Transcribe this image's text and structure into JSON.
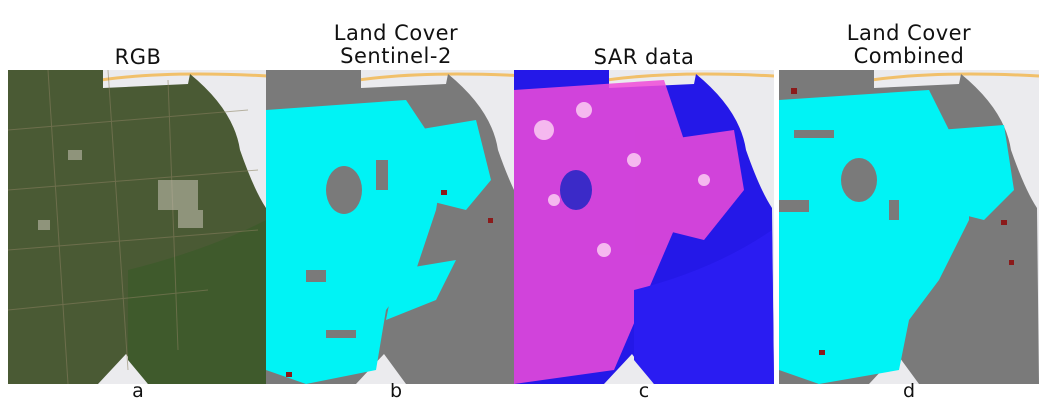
{
  "panels": [
    {
      "title": "RGB",
      "letter": "a",
      "style": "rgb"
    },
    {
      "title": "Land Cover\nSentinel-2",
      "letter": "b",
      "style": "lc"
    },
    {
      "title": "SAR data",
      "letter": "c",
      "style": "sar"
    },
    {
      "title": "Land Cover\nCombined",
      "letter": "d",
      "style": "lc2"
    }
  ],
  "colors": {
    "background_map": "#ebebee",
    "road": "#f1c06a",
    "rgb_base": "#4a5a34",
    "rgb_field": "#3f5a2c",
    "lc_urban": "#00f3f5",
    "lc_gray": "#7a7a7a",
    "lc_red": "#8b1a1a",
    "sar_base": "#2418e8",
    "sar_bright": "#f04bd8"
  }
}
